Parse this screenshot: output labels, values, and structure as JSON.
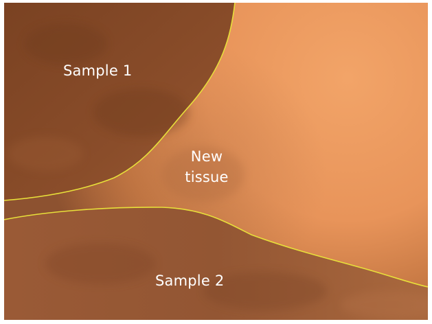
{
  "image": {
    "labels": {
      "sample_1": "Sample 1",
      "new_tissue": "New\ntissue",
      "sample_2": "Sample 2"
    },
    "colors": {
      "boundary_line": "#e8e03a",
      "label_text": "#ffffff",
      "sample_tissue": "#8a4f2c",
      "bright_region": "#f0a064"
    }
  }
}
